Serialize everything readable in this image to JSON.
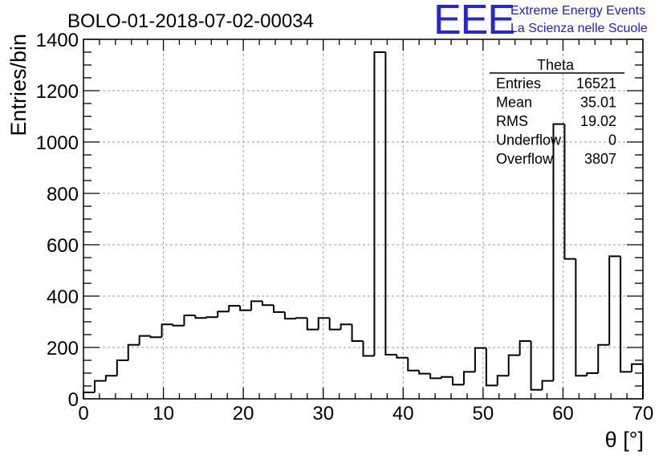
{
  "header": {
    "title": "BOLO-01-2018-07-02-00034"
  },
  "logo": {
    "letters": "EEE",
    "line1": "Extreme Energy Events",
    "line2": "La Scienza nelle Scuole",
    "color": "#1a1ae6"
  },
  "stats_box": {
    "name": "Theta",
    "rows": [
      {
        "label": "Entries",
        "value": "16521"
      },
      {
        "label": "Mean",
        "value": "35.01"
      },
      {
        "label": "RMS",
        "value": "19.02"
      },
      {
        "label": "Underflow",
        "value": "0"
      },
      {
        "label": "Overflow",
        "value": "3807"
      }
    ]
  },
  "chart_data": {
    "type": "histogram",
    "xlabel": "θ [°]",
    "ylabel": "Entries/bin",
    "xlim": [
      0,
      70
    ],
    "ylim": [
      0,
      1400
    ],
    "x_ticks": [
      0,
      10,
      20,
      30,
      40,
      50,
      60,
      70
    ],
    "y_ticks": [
      0,
      200,
      400,
      600,
      800,
      1000,
      1200,
      1400
    ],
    "grid": true,
    "bin_width": 1.4,
    "bin_start": 0,
    "values": [
      25,
      70,
      90,
      150,
      210,
      245,
      240,
      290,
      285,
      325,
      315,
      318,
      340,
      362,
      345,
      380,
      365,
      338,
      312,
      315,
      270,
      315,
      270,
      290,
      225,
      167,
      1350,
      172,
      160,
      110,
      98,
      80,
      85,
      55,
      105,
      198,
      52,
      90,
      170,
      225,
      35,
      70,
      1070,
      545,
      90,
      100,
      210,
      555,
      105,
      135
    ],
    "line_color": "#000000"
  }
}
